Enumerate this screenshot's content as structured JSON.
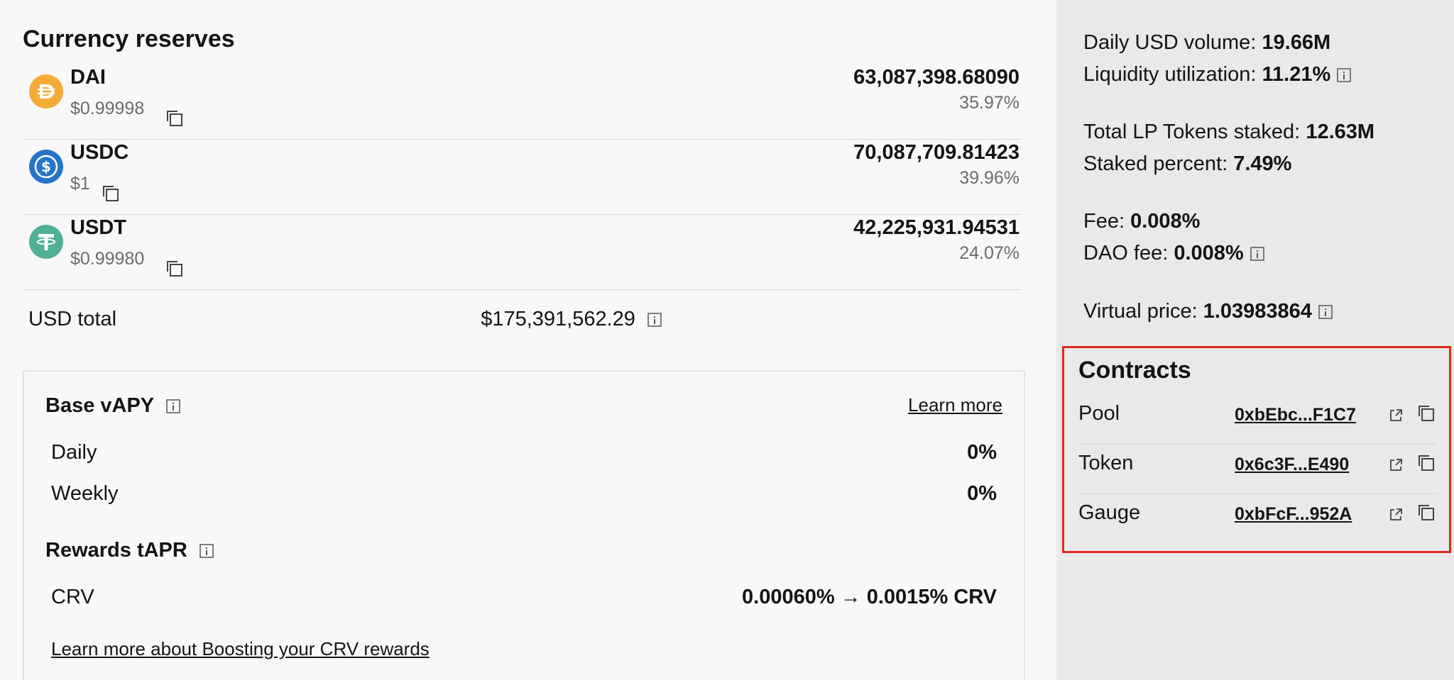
{
  "reserves": {
    "title": "Currency reserves",
    "coins": [
      {
        "symbol": "DAI",
        "price": "$0.99998",
        "amount": "63,087,398.68090",
        "percent": "35.97%",
        "color": "#f5ac37",
        "icon": "dai-icon"
      },
      {
        "symbol": "USDC",
        "price": "$1",
        "amount": "70,087,709.81423",
        "percent": "39.96%",
        "color": "#2775ca",
        "icon": "usdc-icon"
      },
      {
        "symbol": "USDT",
        "price": "$0.99980",
        "amount": "42,225,931.94531",
        "percent": "24.07%",
        "color": "#50af95",
        "icon": "usdt-icon"
      }
    ],
    "usd_total_label": "USD total",
    "usd_total_value": "$175,391,562.29"
  },
  "apy": {
    "base_title": "Base vAPY",
    "learn_more": "Learn more",
    "daily_label": "Daily",
    "daily_value": "0%",
    "weekly_label": "Weekly",
    "weekly_value": "0%",
    "rewards_title": "Rewards tAPR",
    "crv_label": "CRV",
    "crv_value": "0.00060% → 0.0015% CRV",
    "boost_link": "Learn more about Boosting your CRV rewards"
  },
  "stats": {
    "daily_volume_label": "Daily USD volume:",
    "daily_volume_value": "19.66M",
    "liquidity_util_label": "Liquidity utilization:",
    "liquidity_util_value": "11.21%",
    "lp_staked_label": "Total LP Tokens staked:",
    "lp_staked_value": "12.63M",
    "staked_pct_label": "Staked percent:",
    "staked_pct_value": "7.49%",
    "fee_label": "Fee:",
    "fee_value": "0.008%",
    "dao_fee_label": "DAO fee:",
    "dao_fee_value": "0.008%",
    "virtual_price_label": "Virtual price:",
    "virtual_price_value": "1.03983864"
  },
  "contracts": {
    "title": "Contracts",
    "items": [
      {
        "label": "Pool",
        "address": "0xbEbc...F1C7"
      },
      {
        "label": "Token",
        "address": "0x6c3F...E490"
      },
      {
        "label": "Gauge",
        "address": "0xbFcF...952A"
      }
    ],
    "highlight_color": "#e02a1c"
  }
}
